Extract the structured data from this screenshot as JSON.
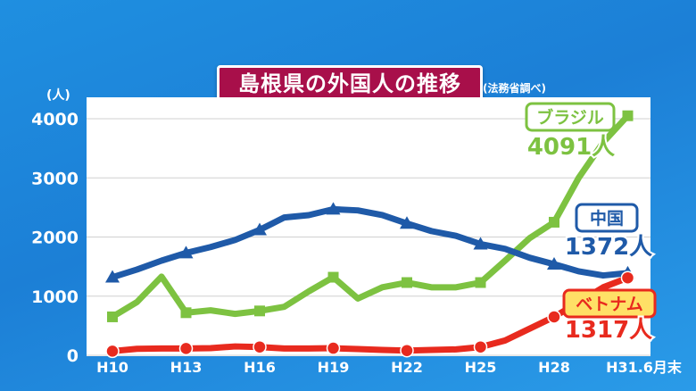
{
  "header": {
    "title": "島根県の外国人の推移",
    "source_note": "(法務省調べ)",
    "y_unit": "(人)"
  },
  "colors": {
    "brazil": "#7dc241",
    "china": "#1f5aa8",
    "vietnam": "#e82a1e",
    "title_bg": "#a80f4a",
    "plot_bg": "#ffffff",
    "axis_text": "#ffffff"
  },
  "chart_data": {
    "type": "line",
    "title": "島根県の外国人の推移",
    "ylabel": "(人)",
    "ylim": [
      0,
      4000
    ],
    "yticks": [
      0,
      1000,
      2000,
      3000,
      4000
    ],
    "x_tick_labels": [
      "H10",
      "H13",
      "H16",
      "H19",
      "H22",
      "H25",
      "H28",
      "H31.6月末"
    ],
    "grid": true,
    "series": [
      {
        "name": "ブラジル",
        "key": "brazil",
        "marker": "square",
        "end_label": "4091人",
        "points": [
          [
            "H10",
            650
          ],
          [
            "H11",
            900
          ],
          [
            "H12",
            1330
          ],
          [
            "H13",
            720
          ],
          [
            "H14",
            760
          ],
          [
            "H15",
            700
          ],
          [
            "H16",
            750
          ],
          [
            "H17",
            820
          ],
          [
            "H18",
            1080
          ],
          [
            "H19",
            1320
          ],
          [
            "H20",
            960
          ],
          [
            "H21",
            1150
          ],
          [
            "H22",
            1230
          ],
          [
            "H23",
            1150
          ],
          [
            "H24",
            1150
          ],
          [
            "H25",
            1230
          ],
          [
            "H26",
            1600
          ],
          [
            "H27",
            1980
          ],
          [
            "H28",
            2250
          ],
          [
            "H29",
            3000
          ],
          [
            "H30",
            3600
          ],
          [
            "H31.6月末",
            4050
          ]
        ]
      },
      {
        "name": "中国",
        "key": "china",
        "marker": "triangle",
        "end_label": "1372人",
        "points": [
          [
            "H10",
            1320
          ],
          [
            "H11",
            1450
          ],
          [
            "H12",
            1600
          ],
          [
            "H13",
            1730
          ],
          [
            "H14",
            1830
          ],
          [
            "H15",
            1950
          ],
          [
            "H16",
            2120
          ],
          [
            "H17",
            2330
          ],
          [
            "H18",
            2370
          ],
          [
            "H19",
            2470
          ],
          [
            "H20",
            2450
          ],
          [
            "H21",
            2370
          ],
          [
            "H22",
            2230
          ],
          [
            "H23",
            2100
          ],
          [
            "H24",
            2020
          ],
          [
            "H25",
            1880
          ],
          [
            "H26",
            1800
          ],
          [
            "H27",
            1650
          ],
          [
            "H28",
            1540
          ],
          [
            "H29",
            1420
          ],
          [
            "H30",
            1350
          ],
          [
            "H31.6月末",
            1390
          ]
        ]
      },
      {
        "name": "ベトナム",
        "key": "vietnam",
        "marker": "circle",
        "end_label": "1317人",
        "points": [
          [
            "H10",
            70
          ],
          [
            "H11",
            110
          ],
          [
            "H12",
            115
          ],
          [
            "H13",
            115
          ],
          [
            "H14",
            120
          ],
          [
            "H15",
            150
          ],
          [
            "H16",
            140
          ],
          [
            "H17",
            115
          ],
          [
            "H18",
            115
          ],
          [
            "H19",
            120
          ],
          [
            "H20",
            105
          ],
          [
            "H21",
            90
          ],
          [
            "H22",
            80
          ],
          [
            "H23",
            90
          ],
          [
            "H24",
            100
          ],
          [
            "H25",
            140
          ],
          [
            "H26",
            250
          ],
          [
            "H27",
            450
          ],
          [
            "H28",
            650
          ],
          [
            "H29",
            900
          ],
          [
            "H30",
            1150
          ],
          [
            "H31.6月末",
            1310
          ]
        ]
      }
    ]
  }
}
